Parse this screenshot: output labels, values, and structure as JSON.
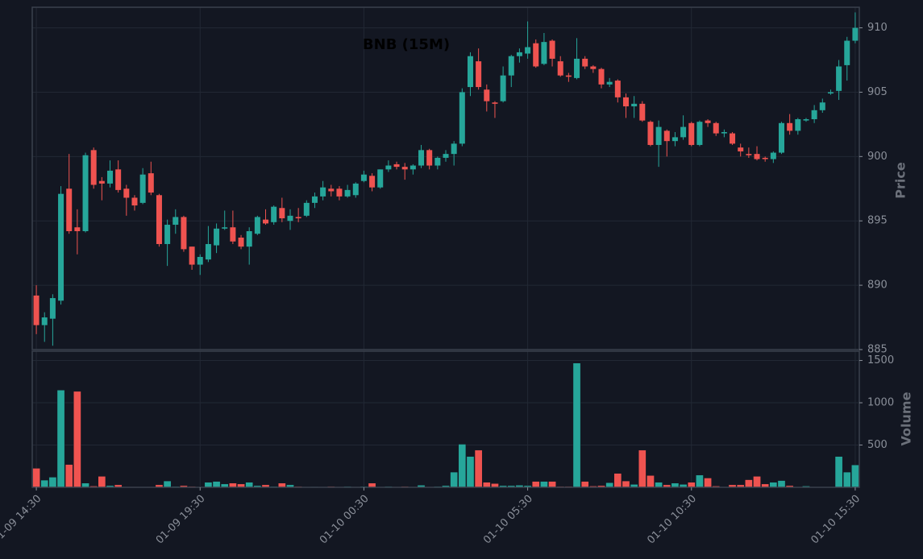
{
  "chart_data": {
    "type": "candlestick",
    "title": "BNB (15M)",
    "ylabel": "Price",
    "volume_label": "Volume",
    "categories": [
      "01-09 14:30",
      null,
      null,
      null,
      null,
      null,
      null,
      null,
      null,
      null,
      null,
      null,
      null,
      null,
      null,
      null,
      null,
      null,
      null,
      null,
      "01-09 19:30",
      null,
      null,
      null,
      null,
      null,
      null,
      null,
      null,
      null,
      null,
      null,
      null,
      null,
      null,
      null,
      null,
      null,
      null,
      null,
      "01-10 00:30",
      null,
      null,
      null,
      null,
      null,
      null,
      null,
      null,
      null,
      null,
      null,
      null,
      null,
      null,
      null,
      null,
      null,
      null,
      null,
      "01-10 05:30",
      null,
      null,
      null,
      null,
      null,
      null,
      null,
      null,
      null,
      null,
      null,
      null,
      null,
      null,
      null,
      null,
      null,
      null,
      null,
      "01-10 10:30",
      null,
      null,
      null,
      null,
      null,
      null,
      null,
      null,
      null,
      null,
      null,
      null,
      null,
      null,
      null,
      null,
      null,
      null,
      null,
      "01-10 15:30"
    ],
    "open": [
      889.2,
      886.9,
      887.4,
      888.8,
      897.5,
      894.5,
      894.2,
      900.5,
      898.1,
      897.9,
      899.0,
      897.5,
      896.8,
      896.4,
      898.7,
      897.0,
      893.2,
      894.7,
      895.3,
      893.0,
      891.6,
      892.0,
      893.1,
      894.4,
      894.5,
      893.7,
      893.0,
      894.0,
      895.1,
      894.9,
      896.0,
      895.0,
      895.3,
      895.4,
      896.4,
      896.9,
      897.5,
      897.5,
      896.9,
      897.0,
      898.1,
      898.5,
      897.6,
      899.0,
      899.4,
      899.2,
      899.0,
      899.3,
      900.5,
      899.3,
      899.9,
      900.2,
      901.0,
      905.4,
      907.4,
      905.2,
      904.2,
      904.3,
      906.3,
      907.8,
      908.0,
      908.8,
      907.2,
      909.0,
      907.4,
      906.3,
      906.1,
      907.6,
      907.0,
      906.8,
      905.6,
      905.9,
      904.6,
      903.9,
      904.1,
      902.7,
      900.9,
      902.0,
      901.2,
      901.5,
      902.6,
      900.9,
      902.8,
      902.6,
      901.8,
      901.8,
      900.7,
      900.2,
      900.2,
      899.9,
      899.8,
      900.3,
      902.6,
      902.0,
      902.8,
      902.9,
      903.6,
      904.9,
      905.1,
      907.1,
      909.0
    ],
    "high": [
      890.0,
      887.9,
      889.3,
      897.7,
      900.2,
      895.9,
      900.3,
      900.7,
      898.4,
      899.7,
      899.7,
      897.8,
      897.0,
      899.1,
      899.6,
      897.1,
      895.1,
      895.9,
      895.4,
      893.0,
      892.4,
      894.6,
      894.8,
      895.8,
      895.8,
      893.9,
      894.5,
      895.4,
      895.9,
      896.2,
      896.8,
      895.9,
      896.0,
      896.6,
      897.2,
      898.1,
      897.8,
      897.7,
      897.8,
      898.0,
      898.9,
      898.7,
      899.0,
      899.7,
      899.6,
      899.5,
      899.4,
      900.9,
      900.6,
      900.0,
      900.5,
      901.2,
      905.3,
      908.1,
      908.4,
      905.6,
      904.3,
      907.0,
      907.9,
      908.4,
      910.5,
      909.1,
      909.6,
      909.1,
      907.8,
      906.5,
      909.2,
      907.8,
      907.1,
      906.9,
      906.1,
      906.0,
      904.9,
      904.7,
      904.3,
      902.8,
      902.8,
      902.1,
      901.9,
      903.2,
      902.7,
      902.8,
      902.9,
      902.7,
      902.1,
      901.9,
      901.0,
      900.7,
      900.8,
      900.0,
      900.4,
      902.7,
      903.3,
      903.0,
      903.0,
      904.0,
      904.5,
      905.2,
      907.5,
      909.3,
      911.2
    ],
    "low": [
      886.2,
      885.6,
      885.3,
      888.5,
      894.0,
      892.4,
      894.1,
      897.5,
      896.6,
      897.6,
      897.2,
      895.4,
      895.8,
      896.3,
      897.0,
      893.0,
      891.5,
      894.0,
      892.6,
      891.2,
      890.8,
      891.8,
      892.5,
      894.3,
      893.2,
      892.8,
      891.6,
      893.9,
      894.7,
      894.7,
      894.9,
      894.3,
      894.9,
      895.3,
      896.0,
      896.6,
      896.9,
      896.6,
      896.8,
      896.8,
      898.0,
      897.3,
      897.5,
      898.8,
      899.0,
      898.2,
      898.6,
      899.1,
      899.0,
      899.0,
      899.6,
      899.3,
      900.8,
      904.7,
      905.2,
      903.5,
      903.0,
      904.2,
      905.4,
      907.3,
      907.6,
      906.9,
      907.1,
      907.0,
      906.2,
      905.8,
      906.0,
      906.8,
      906.5,
      905.3,
      905.4,
      904.2,
      903.0,
      903.0,
      902.7,
      900.8,
      899.2,
      900.0,
      900.8,
      901.3,
      900.8,
      900.8,
      902.3,
      901.6,
      901.5,
      900.9,
      900.0,
      899.9,
      899.7,
      899.6,
      899.5,
      900.2,
      901.7,
      901.7,
      902.7,
      902.6,
      903.4,
      904.8,
      904.4,
      905.9,
      908.8
    ],
    "close": [
      886.9,
      887.5,
      889.0,
      897.1,
      894.2,
      894.2,
      900.1,
      897.8,
      897.9,
      898.9,
      897.4,
      896.8,
      896.2,
      898.6,
      897.2,
      893.2,
      894.7,
      895.3,
      892.8,
      891.6,
      892.2,
      893.2,
      894.4,
      894.5,
      893.4,
      893.0,
      894.2,
      895.3,
      894.8,
      896.1,
      895.2,
      895.4,
      895.2,
      896.4,
      896.9,
      897.6,
      897.3,
      896.9,
      897.4,
      897.9,
      898.6,
      897.6,
      899.0,
      899.3,
      899.2,
      899.0,
      899.3,
      900.5,
      899.3,
      899.9,
      900.2,
      901.0,
      905.0,
      907.8,
      905.4,
      904.3,
      904.1,
      906.3,
      907.8,
      908.1,
      908.5,
      907.0,
      908.9,
      907.6,
      906.3,
      906.2,
      907.6,
      907.0,
      906.8,
      905.6,
      905.8,
      904.6,
      903.9,
      904.1,
      902.8,
      900.9,
      902.3,
      901.2,
      901.5,
      902.3,
      900.9,
      902.7,
      902.6,
      901.8,
      901.9,
      901.0,
      900.4,
      900.1,
      899.8,
      899.8,
      900.3,
      902.6,
      902.0,
      902.9,
      902.9,
      903.6,
      904.2,
      905.0,
      907.0,
      909.0,
      910.0
    ],
    "volume": [
      225,
      85,
      120,
      1150,
      270,
      1135,
      50,
      15,
      130,
      20,
      30,
      5,
      5,
      5,
      5,
      30,
      75,
      10,
      20,
      10,
      5,
      60,
      70,
      40,
      50,
      40,
      60,
      20,
      30,
      10,
      50,
      30,
      10,
      5,
      8,
      5,
      10,
      5,
      10,
      5,
      10,
      50,
      5,
      10,
      5,
      10,
      5,
      25,
      5,
      10,
      20,
      180,
      510,
      365,
      440,
      60,
      45,
      20,
      20,
      25,
      20,
      70,
      70,
      70,
      10,
      10,
      1470,
      70,
      15,
      20,
      55,
      165,
      75,
      35,
      440,
      140,
      60,
      30,
      50,
      35,
      60,
      145,
      110,
      15,
      5,
      30,
      30,
      90,
      130,
      40,
      60,
      80,
      20,
      5,
      15,
      5,
      5,
      5,
      365,
      180,
      265
    ],
    "ylim": [
      885,
      911.6
    ],
    "yticks": [
      885,
      890,
      895,
      900,
      905,
      910
    ],
    "volume_ylim": [
      0,
      1610
    ],
    "volume_yticks": [
      500,
      1000,
      1500
    ],
    "up_color": "#26a69a",
    "down_color": "#ef5350",
    "grid": true
  }
}
